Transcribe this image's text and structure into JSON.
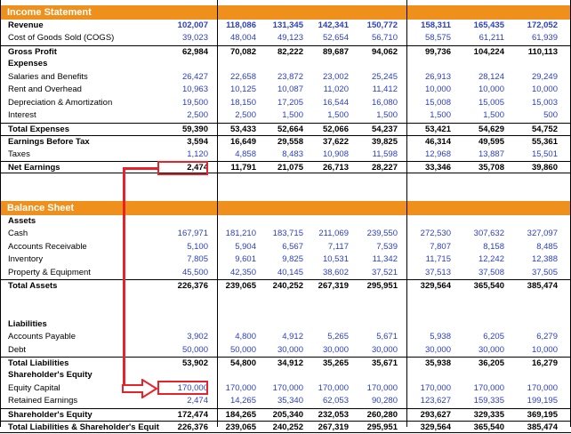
{
  "income": {
    "title": "Income Statement",
    "rows": [
      {
        "label": "Revenue",
        "bold": true,
        "blue": true,
        "vals": [
          "102,007",
          "118,086",
          "131,345",
          "142,341",
          "150,772",
          "158,311",
          "165,435",
          "172,052"
        ]
      },
      {
        "label": "Cost of Goods Sold (COGS)",
        "blue": true,
        "vals": [
          "39,023",
          "48,004",
          "49,123",
          "52,654",
          "56,710",
          "58,575",
          "61,211",
          "61,939"
        ]
      },
      {
        "label": "Gross Profit",
        "bold": true,
        "border": "top",
        "vals": [
          "62,984",
          "70,082",
          "82,222",
          "89,687",
          "94,062",
          "99,736",
          "104,224",
          "110,113"
        ]
      },
      {
        "label": "Expenses",
        "bold": true,
        "vals": []
      },
      {
        "label": "Salaries and Benefits",
        "blue": true,
        "vals": [
          "26,427",
          "22,658",
          "23,872",
          "23,002",
          "25,245",
          "26,913",
          "28,124",
          "29,249"
        ]
      },
      {
        "label": "Rent and Overhead",
        "blue": true,
        "vals": [
          "10,963",
          "10,125",
          "10,087",
          "11,020",
          "11,412",
          "10,000",
          "10,000",
          "10,000"
        ]
      },
      {
        "label": "Depreciation & Amortization",
        "blue": true,
        "vals": [
          "19,500",
          "18,150",
          "17,205",
          "16,544",
          "16,080",
          "15,008",
          "15,005",
          "15,003"
        ]
      },
      {
        "label": "Interest",
        "blue": true,
        "vals": [
          "2,500",
          "2,500",
          "1,500",
          "1,500",
          "1,500",
          "1,500",
          "1,500",
          "500"
        ]
      },
      {
        "label": "Total Expenses",
        "bold": true,
        "border": "top",
        "vals": [
          "59,390",
          "53,433",
          "52,664",
          "52,066",
          "54,237",
          "53,421",
          "54,629",
          "54,752"
        ]
      },
      {
        "label": "Earnings Before Tax",
        "bold": true,
        "border": "top",
        "vals": [
          "3,594",
          "16,649",
          "29,558",
          "37,622",
          "39,825",
          "46,314",
          "49,595",
          "55,361"
        ]
      },
      {
        "label": "Taxes",
        "blue": true,
        "vals": [
          "1,120",
          "4,858",
          "8,483",
          "10,908",
          "11,598",
          "12,968",
          "13,887",
          "15,501"
        ]
      },
      {
        "label": "Net Earnings",
        "bold": true,
        "border": "both",
        "vals": [
          "2,474",
          "11,791",
          "21,075",
          "26,713",
          "28,227",
          "33,346",
          "35,708",
          "39,860"
        ]
      }
    ]
  },
  "balance": {
    "title": "Balance Sheet",
    "rows": [
      {
        "label": "Assets",
        "bold": true,
        "vals": []
      },
      {
        "label": "Cash",
        "blue": true,
        "vals": [
          "167,971",
          "181,210",
          "183,715",
          "211,069",
          "239,550",
          "272,530",
          "307,632",
          "327,097"
        ]
      },
      {
        "label": "Accounts Receivable",
        "blue": true,
        "vals": [
          "5,100",
          "5,904",
          "6,567",
          "7,117",
          "7,539",
          "7,807",
          "8,158",
          "8,485"
        ]
      },
      {
        "label": "Inventory",
        "blue": true,
        "vals": [
          "7,805",
          "9,601",
          "9,825",
          "10,531",
          "11,342",
          "11,715",
          "12,242",
          "12,388"
        ]
      },
      {
        "label": "Property & Equipment",
        "blue": true,
        "vals": [
          "45,500",
          "42,350",
          "40,145",
          "38,602",
          "37,521",
          "37,513",
          "37,508",
          "37,505"
        ]
      },
      {
        "label": "Total Assets",
        "bold": true,
        "border": "top",
        "vals": [
          "226,376",
          "239,065",
          "240,252",
          "267,319",
          "295,951",
          "329,564",
          "365,540",
          "385,474"
        ]
      },
      {
        "label": "",
        "vals": []
      },
      {
        "label": "",
        "vals": []
      },
      {
        "label": "Liabilities",
        "bold": true,
        "vals": []
      },
      {
        "label": "Accounts Payable",
        "blue": true,
        "vals": [
          "3,902",
          "4,800",
          "4,912",
          "5,265",
          "5,671",
          "5,938",
          "6,205",
          "6,279"
        ]
      },
      {
        "label": "Debt",
        "blue": true,
        "vals": [
          "50,000",
          "50,000",
          "30,000",
          "30,000",
          "30,000",
          "30,000",
          "30,000",
          "10,000"
        ]
      },
      {
        "label": "Total Liabilities",
        "bold": true,
        "border": "top",
        "vals": [
          "53,902",
          "54,800",
          "34,912",
          "35,265",
          "35,671",
          "35,938",
          "36,205",
          "16,279"
        ]
      },
      {
        "label": "Shareholder's Equity",
        "bold": true,
        "vals": []
      },
      {
        "label": "Equity Capital",
        "blue": true,
        "vals": [
          "170,000",
          "170,000",
          "170,000",
          "170,000",
          "170,000",
          "170,000",
          "170,000",
          "170,000"
        ]
      },
      {
        "label": "Retained Earnings",
        "blue": true,
        "vals": [
          "2,474",
          "14,265",
          "35,340",
          "62,053",
          "90,280",
          "123,627",
          "159,335",
          "199,195"
        ]
      },
      {
        "label": "Shareholder's Equity",
        "bold": true,
        "border": "top",
        "vals": [
          "172,474",
          "184,265",
          "205,340",
          "232,053",
          "260,280",
          "293,627",
          "329,335",
          "369,195"
        ]
      },
      {
        "label": "Total Liabilities & Shareholder's Equit",
        "bold": true,
        "border": "both",
        "vals": [
          "226,376",
          "239,065",
          "240,252",
          "267,319",
          "295,951",
          "329,564",
          "365,540",
          "385,474"
        ]
      }
    ]
  },
  "colors": {
    "header": "#f0901c",
    "input_blue": "#2b3fc7",
    "highlight": "#e8222a"
  }
}
